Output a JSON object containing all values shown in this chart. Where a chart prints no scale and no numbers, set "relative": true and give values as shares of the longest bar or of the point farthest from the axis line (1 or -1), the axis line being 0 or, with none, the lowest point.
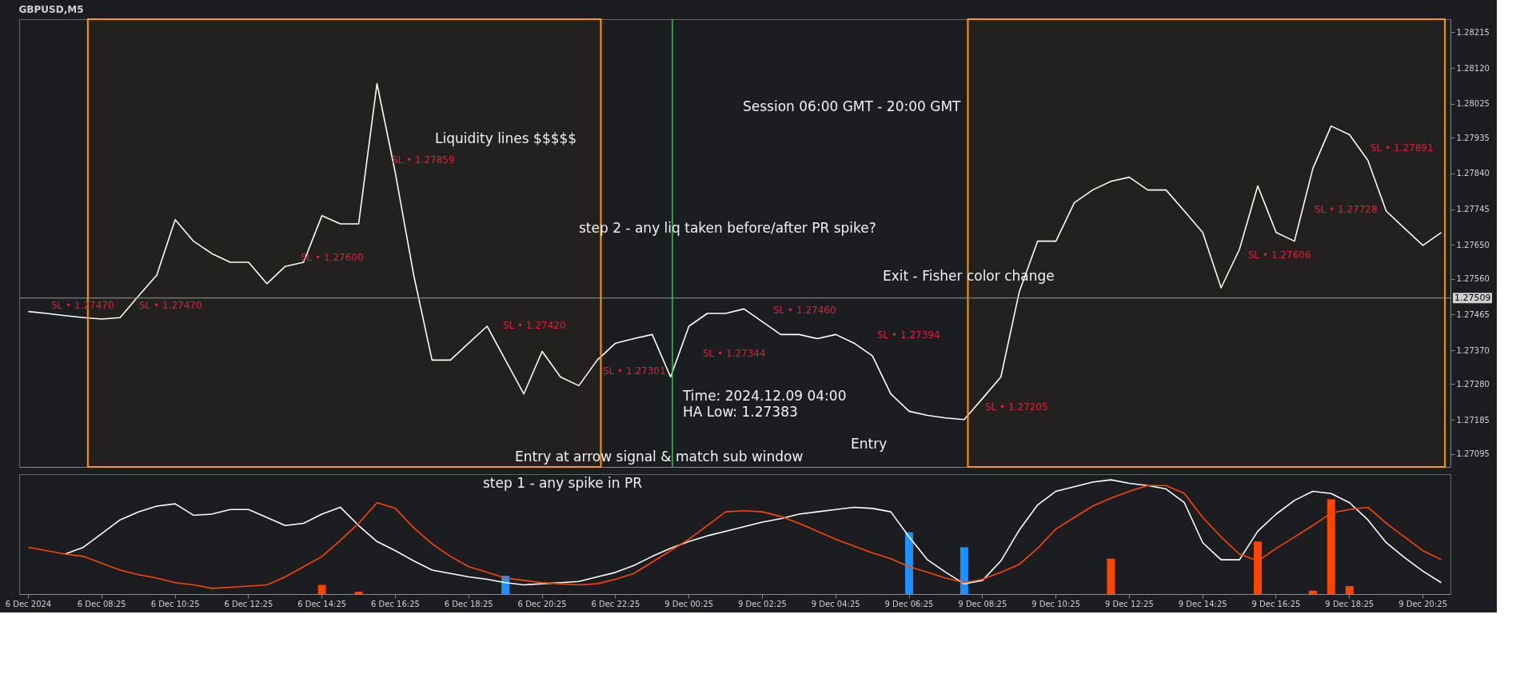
{
  "chart_data": [
    {
      "type": "line",
      "title": "GBPUSD,M5",
      "tick_labels": "y",
      "grid": false,
      "categories": [
        null,
        null,
        null,
        null,
        null,
        null,
        null,
        null,
        null,
        null,
        null,
        null,
        null,
        null,
        null,
        null,
        null,
        null,
        null,
        null,
        null,
        null,
        null,
        null,
        null,
        null,
        null,
        null,
        null,
        null,
        null,
        null,
        null,
        null,
        null,
        null,
        null,
        null,
        null,
        null,
        null,
        null,
        null,
        null,
        null,
        null,
        null,
        null,
        null,
        null,
        null,
        null,
        null,
        null,
        null,
        null,
        null,
        null,
        null,
        null,
        null,
        null,
        null,
        null,
        null,
        null,
        null,
        null,
        null,
        null,
        null,
        null,
        null,
        null,
        null,
        null,
        null,
        null
      ],
      "ylim": [
        1.2706,
        1.2825
      ],
      "yticks": [
        1.28215,
        {
          "value": 1.2812,
          "label": "1.28120"
        },
        1.28025,
        1.27935,
        {
          "value": 1.2784,
          "label": "1.27840"
        },
        1.27745,
        {
          "value": 1.2765,
          "label": "1.27650"
        },
        {
          "value": 1.2756,
          "label": "1.27560"
        },
        1.27465,
        {
          "value": 1.2737,
          "label": "1.27370"
        },
        {
          "value": 1.2728,
          "label": "1.27280"
        },
        1.27185,
        1.27095
      ],
      "series": [
        {
          "color": "#ffffff",
          "values": [
            1.27473,
            1.27468,
            1.27462,
            1.27457,
            1.27453,
            1.27457,
            1.27514,
            1.2757,
            1.27717,
            1.2766,
            1.27627,
            1.27604,
            1.27604,
            1.27547,
            1.27593,
            1.27604,
            1.27728,
            1.27706,
            1.27706,
            1.28079,
            1.27841,
            1.2757,
            1.27344,
            1.27344,
            1.27389,
            1.27434,
            1.27344,
            1.27254,
            1.27367,
            1.27299,
            1.27276,
            1.27344,
            1.27389,
            1.27401,
            1.27412,
            1.27299,
            1.27434,
            1.27468,
            1.27468,
            1.2748,
            1.27446,
            1.27412,
            1.27412,
            1.27401,
            1.27412,
            1.27389,
            1.27355,
            1.27254,
            1.27208,
            1.27197,
            1.2719,
            1.27186,
            1.27242,
            1.27299,
            1.27525,
            1.2766,
            1.2766,
            1.27762,
            1.27796,
            1.27819,
            1.2783,
            1.27796,
            1.27796,
            1.2774,
            1.27683,
            1.27536,
            1.27638,
            1.27807,
            1.27683,
            1.2766,
            1.27853,
            1.27966,
            1.27943,
            1.27875,
            1.2774,
            1.27694,
            1.27649,
            1.27683
          ]
        }
      ],
      "ref_lines": [
        {
          "axis": "y",
          "value": 1.27509,
          "label": "1.27509",
          "color": "#9a9a9a"
        }
      ],
      "annotations": [
        "SL • 1.27470",
        "SL • 1.27470",
        "SL • 1.27600",
        "SL • 1.27859",
        "SL • 1.27420",
        "SL • 1.27301",
        "SL • 1.27344",
        "SL • 1.27460",
        "SL • 1.27394",
        "SL • 1.27205",
        "SL • 1.27606",
        "SL • 1.27728",
        "SL • 1.27891",
        "Session 06:00 GMT - 20:00 GMT",
        "Liquidity lines $$$$$",
        "step 2 - any liq taken before/after PR spike?",
        "Exit - Fisher color change",
        "Entry at arrow signal & match sub window",
        "Entry",
        "Time: 2024.12.09 04:00",
        "HA Low: 1.27383"
      ]
    },
    {
      "type": "line",
      "relative": true,
      "grid": false,
      "categories": [
        "6 Dec 2024",
        null,
        null,
        null,
        "6 Dec 08:25",
        null,
        null,
        null,
        "6 Dec 10:25",
        null,
        null,
        null,
        "6 Dec 12:25",
        null,
        null,
        null,
        "6 Dec 14:25",
        null,
        null,
        null,
        "6 Dec 16:25",
        null,
        null,
        null,
        "6 Dec 18:25",
        null,
        null,
        null,
        "6 Dec 20:25",
        null,
        null,
        null,
        "6 Dec 22:25",
        null,
        null,
        null,
        "9 Dec 00:25",
        null,
        null,
        null,
        "9 Dec 02:25",
        null,
        null,
        null,
        "9 Dec 04:25",
        null,
        null,
        null,
        "9 Dec 06:25",
        null,
        null,
        null,
        "9 Dec 08:25",
        null,
        null,
        null,
        "9 Dec 10:25",
        null,
        null,
        null,
        "9 Dec 12:25",
        null,
        null,
        null,
        "9 Dec 14:25",
        null,
        null,
        null,
        "9 Dec 16:25",
        null,
        null,
        null,
        "9 Dec 18:25",
        null,
        null,
        null,
        "9 Dec 20:25",
        null
      ],
      "series": [
        {
          "type": "bar",
          "values": [
            null,
            null,
            null,
            null,
            null,
            null,
            null,
            null,
            null,
            null,
            null,
            null,
            null,
            null,
            null,
            null,
            0.08,
            null,
            0.02,
            null,
            null,
            null,
            null,
            null,
            null,
            null,
            0.16,
            null,
            null,
            null,
            null,
            null,
            null,
            null,
            null,
            null,
            null,
            null,
            null,
            null,
            null,
            null,
            null,
            null,
            null,
            null,
            null,
            null,
            0.54,
            null,
            null,
            0.41,
            null,
            null,
            null,
            null,
            null,
            null,
            null,
            0.31,
            null,
            null,
            null,
            null,
            null,
            null,
            null,
            0.46,
            null,
            null,
            0.03,
            0.83,
            0.07,
            null,
            null,
            null,
            null,
            null
          ],
          "colors": [
            null,
            null,
            null,
            null,
            null,
            null,
            null,
            null,
            null,
            null,
            null,
            null,
            null,
            null,
            null,
            null,
            "#ff4500",
            null,
            "#ff4500",
            null,
            null,
            null,
            null,
            null,
            null,
            null,
            "#1e90ff",
            null,
            null,
            null,
            null,
            null,
            null,
            null,
            null,
            null,
            null,
            null,
            null,
            null,
            null,
            null,
            null,
            null,
            null,
            null,
            null,
            null,
            "#1e90ff",
            null,
            null,
            "#1e90ff",
            null,
            null,
            null,
            null,
            null,
            null,
            null,
            "#ff4500",
            null,
            null,
            null,
            null,
            null,
            null,
            null,
            "#ff4500",
            null,
            null,
            "#ff4500",
            "#ff4500",
            "#ff4500",
            null,
            null,
            null,
            null,
            null
          ]
        },
        {
          "color": "#ffffff",
          "values": [
            null,
            null,
            0.35,
            0.41,
            0.53,
            0.65,
            0.72,
            0.77,
            0.79,
            0.69,
            0.7,
            0.74,
            0.74,
            0.67,
            0.6,
            0.62,
            0.7,
            0.76,
            0.6,
            0.46,
            0.38,
            0.29,
            0.21,
            0.18,
            0.15,
            0.13,
            0.1,
            0.08,
            0.09,
            0.1,
            0.11,
            0.15,
            0.19,
            0.25,
            0.33,
            0.4,
            0.46,
            0.51,
            0.55,
            0.59,
            0.63,
            0.66,
            0.7,
            0.72,
            0.74,
            0.76,
            0.75,
            0.72,
            0.5,
            0.3,
            0.19,
            0.09,
            0.12,
            0.29,
            0.56,
            0.78,
            0.9,
            0.94,
            0.98,
            1.0,
            0.97,
            0.95,
            0.92,
            0.8,
            0.45,
            0.3,
            0.3,
            0.55,
            0.7,
            0.82,
            0.9,
            0.88,
            0.8,
            0.65,
            0.45,
            0.32,
            0.2,
            0.1
          ]
        },
        {
          "color": "#ff4500",
          "values": [
            0.41,
            0.38,
            0.35,
            0.33,
            0.27,
            0.21,
            0.17,
            0.14,
            0.1,
            0.08,
            0.05,
            0.06,
            0.07,
            0.08,
            0.15,
            0.24,
            0.33,
            0.47,
            0.62,
            0.8,
            0.75,
            0.58,
            0.44,
            0.33,
            0.24,
            0.19,
            0.14,
            0.12,
            0.1,
            0.09,
            0.08,
            0.09,
            0.13,
            0.18,
            0.28,
            0.38,
            0.48,
            0.6,
            0.72,
            0.73,
            0.72,
            0.68,
            0.62,
            0.55,
            0.48,
            0.42,
            0.36,
            0.31,
            0.24,
            0.19,
            0.14,
            0.1,
            0.13,
            0.19,
            0.26,
            0.4,
            0.57,
            0.67,
            0.77,
            0.84,
            0.9,
            0.95,
            0.95,
            0.88,
            0.67,
            0.5,
            0.35,
            0.29,
            0.4,
            0.5,
            0.6,
            0.71,
            0.74,
            0.76,
            0.62,
            0.5,
            0.38,
            0.3
          ]
        }
      ],
      "annotations": [
        "step 1 - any spike in PR"
      ]
    }
  ]
}
